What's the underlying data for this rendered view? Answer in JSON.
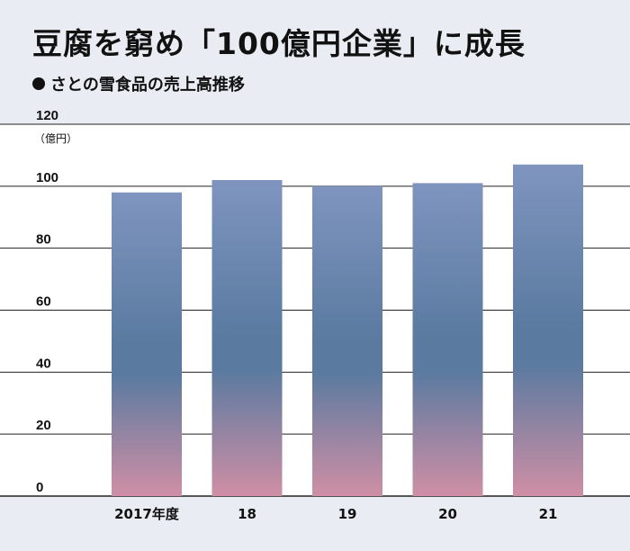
{
  "header": {
    "title": "豆腐を窮め「100億円企業」に成長",
    "subtitle": "さとの雪食品の売上高推移"
  },
  "colors": {
    "background": "#e9ecf2",
    "plot_background": "#ffffff",
    "bar_top": "#7f95bf",
    "bar_mid": "#5a7aa0",
    "bar_bottom": "#cf8fa5"
  },
  "chart_data": {
    "type": "bar",
    "title": "豆腐を窮め「100億円企業」に成長",
    "subtitle": "さとの雪食品の売上高推移",
    "unit": "（億円）",
    "categories": [
      "2017年度",
      "18",
      "19",
      "20",
      "21"
    ],
    "values": [
      98,
      102,
      100,
      101,
      107
    ],
    "ylim": [
      0,
      120
    ],
    "yticks": [
      0,
      20,
      40,
      60,
      80,
      100,
      120
    ],
    "grid": true,
    "legend": "none"
  }
}
